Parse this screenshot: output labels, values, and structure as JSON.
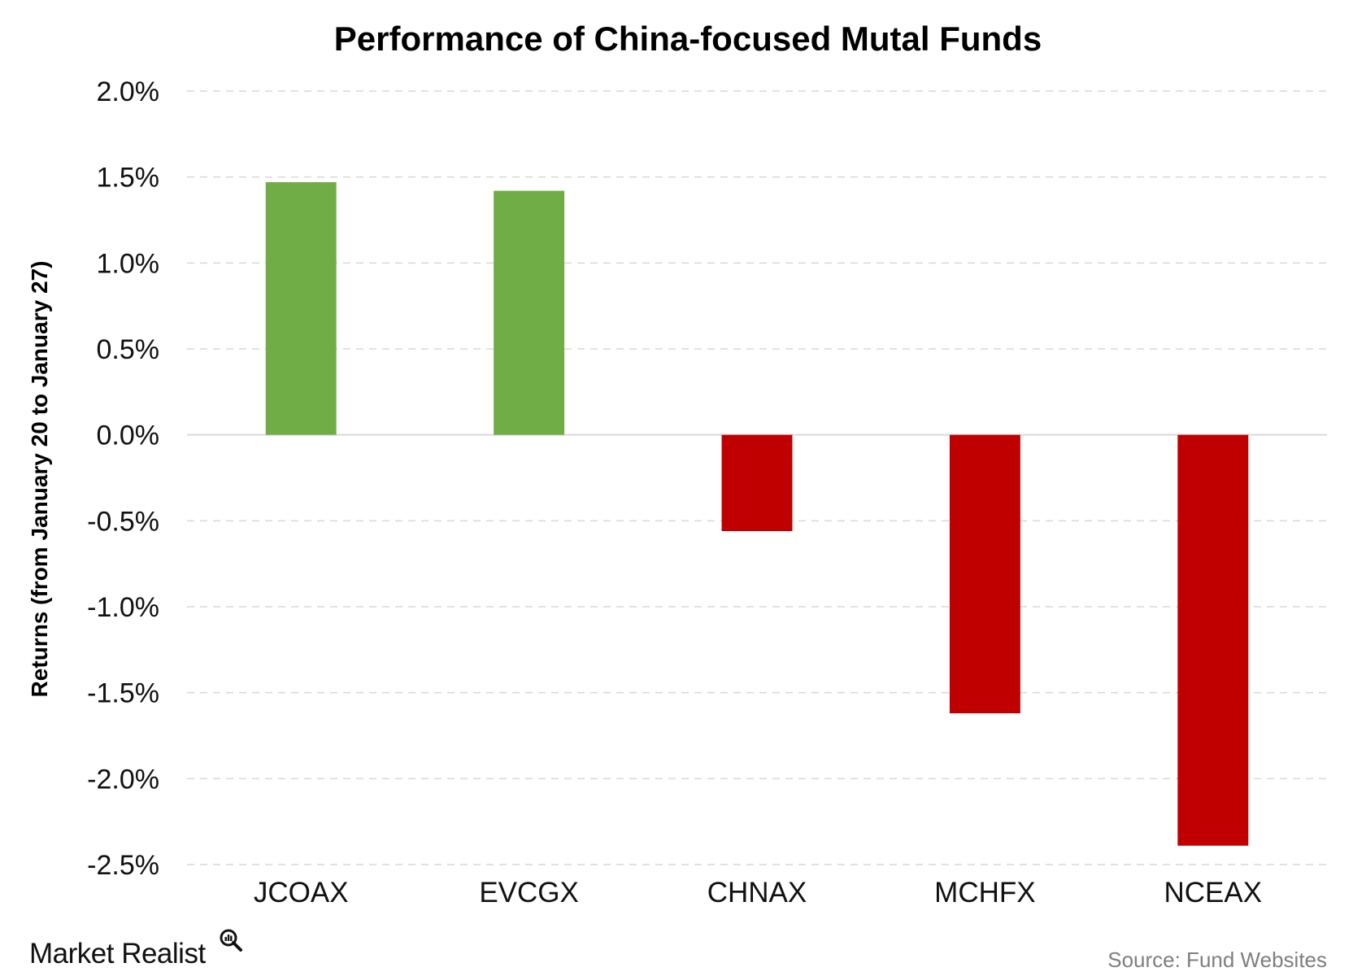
{
  "chart_data": {
    "type": "bar",
    "title": "Performance of China-focused Mutal Funds",
    "xlabel": "",
    "ylabel": "Returns (from January 20 to January 27)",
    "categories": [
      "JCOAX",
      "EVCGX",
      "CHNAX",
      "MCHFX",
      "NCEAX"
    ],
    "values": [
      1.47,
      1.42,
      -0.56,
      -1.62,
      -2.39
    ],
    "unit": "%",
    "ylim": [
      -2.5,
      2.0
    ],
    "yticks": [
      2.0,
      1.5,
      1.0,
      0.5,
      0.0,
      -0.5,
      -1.0,
      -1.5,
      -2.0,
      -2.5
    ],
    "ytick_labels": [
      "2.0%",
      "1.5%",
      "1.0%",
      "0.5%",
      "0.0%",
      "-0.5%",
      "-1.0%",
      "-1.5%",
      "-2.0%",
      "-2.5%"
    ],
    "grid": true,
    "grid_style": "dashed",
    "legend": "none",
    "colors": {
      "positive": "#70ad47",
      "negative": "#c00000",
      "grid": "#d9d9d9",
      "zero_line": "#d9d9d9"
    }
  },
  "source_text": "Source: Fund Websites",
  "brand": {
    "name": "Market Realist",
    "icon": "magnifier-icon"
  }
}
